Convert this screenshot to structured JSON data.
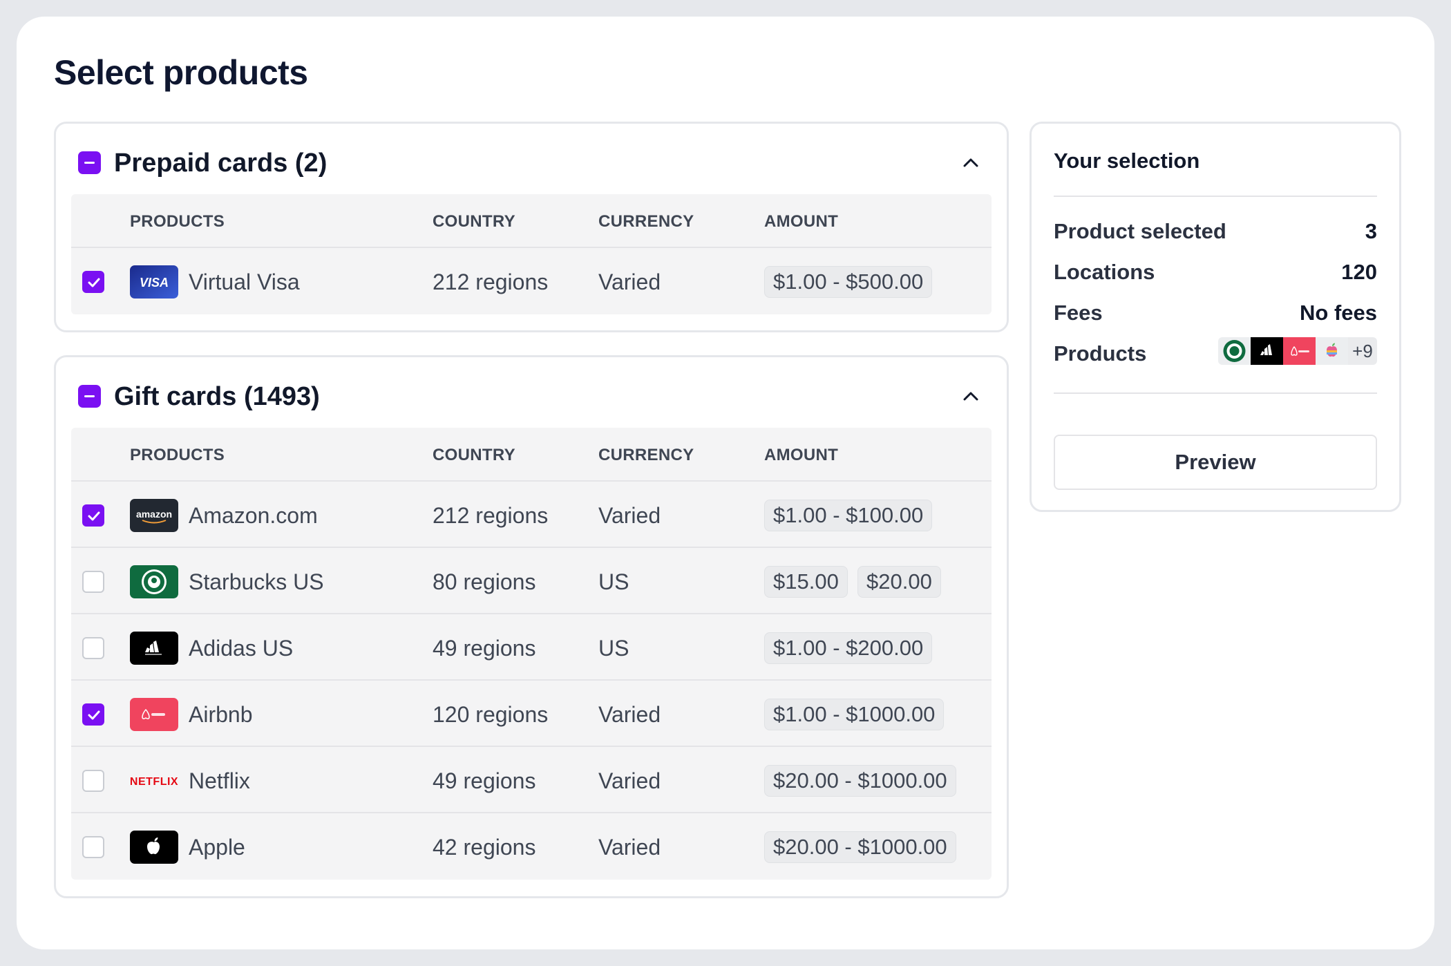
{
  "page_title": "Select products",
  "columns": {
    "products": "PRODUCTS",
    "country": "COUNTRY",
    "currency": "CURRENCY",
    "amount": "AMOUNT"
  },
  "prepaid": {
    "title": "Prepaid cards (2)",
    "rows": [
      {
        "name": "Virtual Visa",
        "logo": "visa-logo",
        "country": "212 regions",
        "currency": "Varied",
        "amounts": [
          "$1.00 - $500.00"
        ],
        "checked": true
      }
    ]
  },
  "gift": {
    "title": "Gift cards (1493)",
    "rows": [
      {
        "name": "Amazon.com",
        "logo": "amazon-logo",
        "country": "212 regions",
        "currency": "Varied",
        "amounts": [
          "$1.00 - $100.00"
        ],
        "checked": true
      },
      {
        "name": "Starbucks US",
        "logo": "starbucks-logo",
        "country": "80 regions",
        "currency": "US",
        "amounts": [
          "$15.00",
          "$20.00"
        ],
        "checked": false
      },
      {
        "name": "Adidas US",
        "logo": "adidas-logo",
        "country": "49 regions",
        "currency": "US",
        "amounts": [
          "$1.00 - $200.00"
        ],
        "checked": false
      },
      {
        "name": "Airbnb",
        "logo": "airbnb-logo",
        "country": "120 regions",
        "currency": "Varied",
        "amounts": [
          "$1.00 - $1000.00"
        ],
        "checked": true
      },
      {
        "name": "Netflix",
        "logo": "netflix-logo",
        "country": "49 regions",
        "currency": "Varied",
        "amounts": [
          "$20.00 - $1000.00"
        ],
        "checked": false
      },
      {
        "name": "Apple",
        "logo": "apple-logo",
        "country": "42 regions",
        "currency": "Varied",
        "amounts": [
          "$20.00 - $1000.00"
        ],
        "checked": false
      }
    ]
  },
  "selection": {
    "title": "Your selection",
    "product_selected_label": "Product selected",
    "product_selected_value": "3",
    "locations_label": "Locations",
    "locations_value": "120",
    "fees_label": "Fees",
    "fees_value": "No fees",
    "products_label": "Products",
    "products_more": "+9",
    "preview_label": "Preview"
  },
  "colors": {
    "accent": "#7a10f2",
    "text": "#11182a",
    "muted": "#3f4653",
    "table_bg": "#f4f4f5"
  }
}
